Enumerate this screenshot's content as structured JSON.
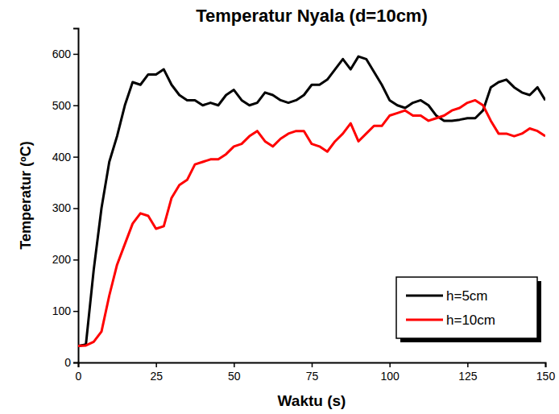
{
  "chart_data": {
    "type": "line",
    "title": "Temperatur Nyala (d=10cm)",
    "x_label": "Waktu (s)",
    "y_label": "Temperatur (ºC)",
    "x": [
      0,
      2.5,
      5,
      7.5,
      10,
      12.5,
      15,
      17.5,
      20,
      22.5,
      25,
      27.5,
      30,
      32.5,
      35,
      37.5,
      40,
      42.5,
      45,
      47.5,
      50,
      52.5,
      55,
      57.5,
      60,
      62.5,
      65,
      67.5,
      70,
      72.5,
      75,
      77.5,
      80,
      82.5,
      85,
      87.5,
      90,
      92.5,
      95,
      97.5,
      100,
      102.5,
      105,
      107.5,
      110,
      112.5,
      115,
      117.5,
      120,
      122.5,
      125,
      127.5,
      130,
      132.5,
      135,
      137.5,
      140,
      142.5,
      145,
      147.5,
      150
    ],
    "series": [
      {
        "name": "h=5cm",
        "color": "#000000",
        "values": [
          32,
          35,
          180,
          300,
          390,
          440,
          500,
          545,
          540,
          560,
          560,
          570,
          540,
          520,
          510,
          510,
          500,
          505,
          500,
          520,
          530,
          510,
          500,
          505,
          525,
          520,
          510,
          505,
          510,
          520,
          540,
          540,
          550,
          570,
          590,
          570,
          595,
          590,
          565,
          540,
          510,
          500,
          495,
          505,
          510,
          500,
          480,
          470,
          470,
          472,
          475,
          475,
          490,
          535,
          545,
          550,
          535,
          525,
          520,
          535,
          510
        ]
      },
      {
        "name": "h=10cm",
        "color": "#ff0000",
        "values": [
          32,
          33,
          40,
          60,
          130,
          190,
          230,
          270,
          290,
          285,
          260,
          265,
          320,
          345,
          355,
          385,
          390,
          395,
          395,
          405,
          420,
          425,
          440,
          450,
          430,
          420,
          435,
          445,
          450,
          450,
          425,
          420,
          410,
          430,
          445,
          465,
          430,
          445,
          460,
          460,
          480,
          485,
          490,
          480,
          480,
          470,
          475,
          480,
          490,
          495,
          505,
          510,
          500,
          470,
          445,
          445,
          440,
          445,
          455,
          450,
          440
        ]
      }
    ],
    "xlim": [
      0,
      150
    ],
    "xticks": [
      0,
      25,
      50,
      75,
      100,
      125,
      150
    ],
    "ylim": [
      0,
      650
    ],
    "yticks": [
      0,
      100,
      200,
      300,
      400,
      500,
      600
    ],
    "grid": false,
    "legend": "lower right"
  }
}
